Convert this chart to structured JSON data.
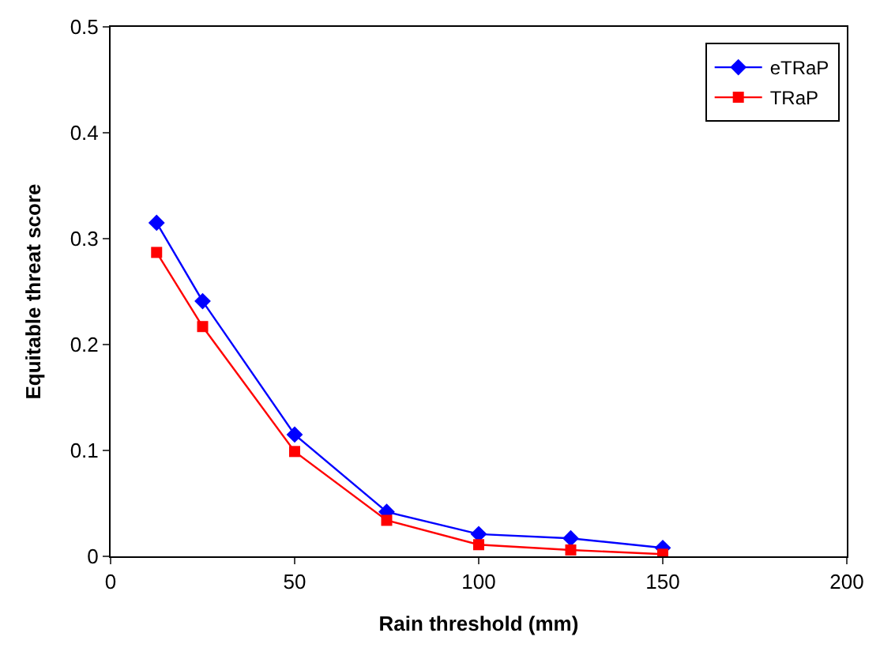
{
  "chart_data": {
    "type": "line",
    "xlabel": "Rain threshold (mm)",
    "ylabel": "Equitable threat score",
    "x": [
      12.5,
      25,
      50,
      75,
      100,
      125,
      150
    ],
    "series": [
      {
        "name": "eTRaP",
        "color": "#0000ff",
        "marker": "diamond",
        "values": [
          0.315,
          0.241,
          0.115,
          0.042,
          0.021,
          0.017,
          0.008
        ]
      },
      {
        "name": "TRaP",
        "color": "#ff0000",
        "marker": "square",
        "values": [
          0.287,
          0.217,
          0.099,
          0.034,
          0.011,
          0.006,
          0.002
        ]
      }
    ],
    "xlim": [
      0,
      200
    ],
    "xticks": [
      0,
      50,
      100,
      150,
      200
    ],
    "ylim": [
      0,
      0.5
    ],
    "yticks": [
      0,
      0.1,
      0.2,
      0.3,
      0.4,
      0.5
    ],
    "grid": false,
    "legend": "top right",
    "line_style": "solid"
  }
}
